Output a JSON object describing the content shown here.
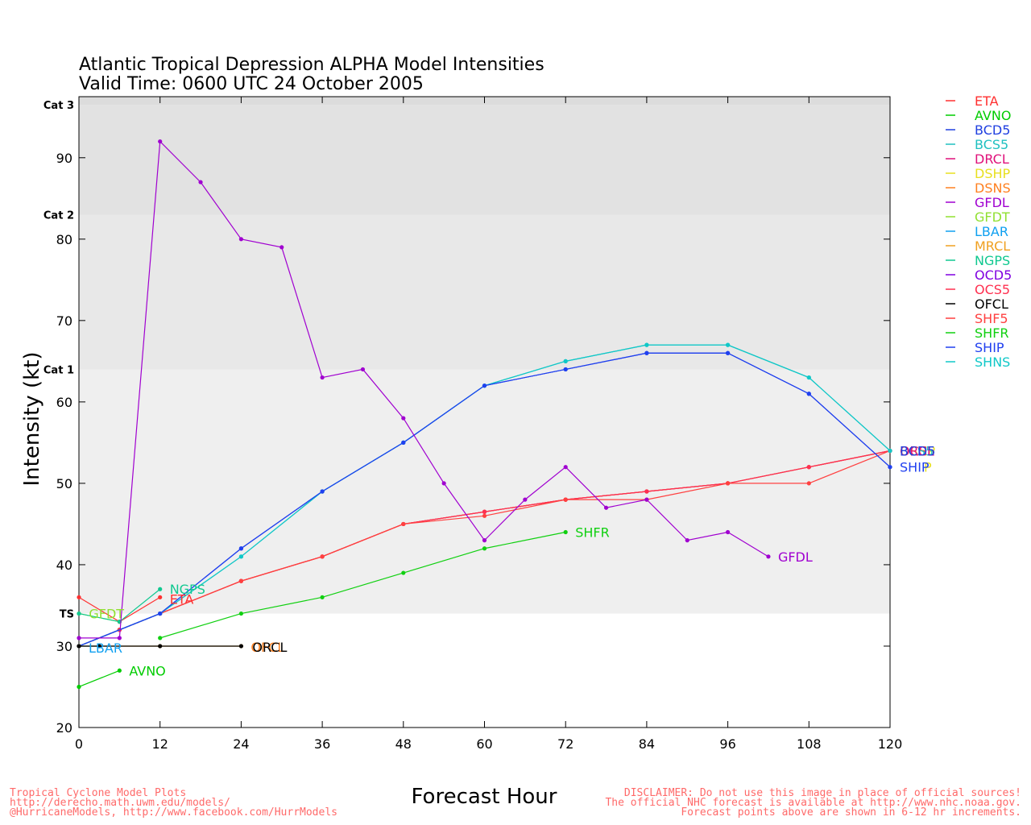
{
  "chart_data": {
    "type": "line",
    "title": "Atlantic Tropical Depression ALPHA Model Intensities",
    "subtitle": "Valid Time: 0600 UTC 24 October 2005",
    "xlabel": "Forecast Hour",
    "ylabel": "Intensity (kt)",
    "xlim": [
      0,
      120
    ],
    "ylim": [
      20,
      97.5
    ],
    "xticks": [
      "0",
      "12",
      "24",
      "36",
      "48",
      "60",
      "72",
      "84",
      "96",
      "108",
      "120"
    ],
    "yticks": [
      "20",
      "30",
      "40",
      "50",
      "60",
      "70",
      "80",
      "90"
    ],
    "xtick_values": [
      0,
      12,
      24,
      36,
      48,
      60,
      72,
      84,
      96,
      108,
      120
    ],
    "ytick_values": [
      20,
      30,
      40,
      50,
      60,
      70,
      80,
      90
    ],
    "intensity_bands": [
      {
        "label": "TS",
        "from": 34,
        "to": 64,
        "color": "#efefef"
      },
      {
        "label": "Cat 1",
        "from": 64,
        "to": 83,
        "color": "#e8e8e8"
      },
      {
        "label": "Cat 2",
        "from": 83,
        "to": 96.5,
        "color": "#e2e2e2"
      },
      {
        "label": "Cat 3",
        "from": 96.5,
        "to": 97.5,
        "color": "#dcdcdc"
      }
    ],
    "legend_position": "right",
    "legend": [
      {
        "name": "ETA",
        "color": "#ff3030"
      },
      {
        "name": "AVNO",
        "color": "#00cc00"
      },
      {
        "name": "BCD5",
        "color": "#2040e0"
      },
      {
        "name": "BCS5",
        "color": "#20c0c0"
      },
      {
        "name": "DRCL",
        "color": "#e0107a"
      },
      {
        "name": "DSHP",
        "color": "#e8e020"
      },
      {
        "name": "DSNS",
        "color": "#ff8020"
      },
      {
        "name": "GFDL",
        "color": "#a000d0"
      },
      {
        "name": "GFDT",
        "color": "#90e030"
      },
      {
        "name": "LBAR",
        "color": "#10a0f0"
      },
      {
        "name": "MRCL",
        "color": "#f0a020"
      },
      {
        "name": "NGPS",
        "color": "#10c890"
      },
      {
        "name": "OCD5",
        "color": "#8000e0"
      },
      {
        "name": "OCS5",
        "color": "#ff3050"
      },
      {
        "name": "OFCL",
        "color": "#000000"
      },
      {
        "name": "SHF5",
        "color": "#ff4040"
      },
      {
        "name": "SHFR",
        "color": "#10d010"
      },
      {
        "name": "SHIP",
        "color": "#2040f0"
      },
      {
        "name": "SHNS",
        "color": "#10c8c8"
      }
    ],
    "series": [
      {
        "name": "DSHP",
        "color": "#e8e020",
        "x": [
          0,
          6,
          12,
          24,
          36,
          48,
          60,
          72,
          84,
          96,
          108,
          120
        ],
        "y": [
          30,
          32,
          34,
          38,
          41,
          45,
          46.5,
          48,
          49,
          50,
          52,
          54
        ]
      },
      {
        "name": "DSNS",
        "color": "#ff8020",
        "x": [
          0,
          6,
          12,
          24,
          36,
          48,
          60,
          72,
          84,
          96,
          108,
          120
        ],
        "y": [
          30,
          32,
          34,
          38,
          41,
          45,
          46.5,
          48,
          49,
          50,
          52,
          54
        ]
      },
      {
        "name": "DRCL",
        "color": "#e0107a",
        "x": [
          0,
          6,
          12,
          24,
          36,
          48,
          60,
          72,
          84,
          96,
          108,
          120
        ],
        "y": [
          30,
          32,
          34,
          38,
          41,
          45,
          46.5,
          48,
          49,
          50,
          52,
          54
        ]
      },
      {
        "name": "OCS5",
        "color": "#ff3050",
        "x": [
          0,
          6,
          12,
          24,
          36,
          48,
          60,
          72,
          84,
          96,
          108,
          120
        ],
        "y": [
          30,
          32,
          34,
          38,
          41,
          45,
          46.5,
          48,
          49,
          50,
          52,
          54
        ]
      },
      {
        "name": "SHF5",
        "color": "#ff4040",
        "x": [
          0,
          6,
          12,
          24,
          36,
          48,
          60,
          72,
          84,
          96,
          108,
          120
        ],
        "y": [
          30,
          32,
          34,
          38,
          41,
          45,
          46,
          48,
          48,
          50,
          50,
          54
        ]
      },
      {
        "name": "BCS5",
        "color": "#20c0c0",
        "x": [
          0,
          12,
          24,
          36,
          48,
          60,
          72,
          84,
          96,
          108,
          120
        ],
        "y": [
          30,
          34,
          41,
          49,
          55,
          62,
          65,
          67,
          67,
          63,
          54
        ]
      },
      {
        "name": "BCD5",
        "color": "#2040e0",
        "x": [
          0,
          12,
          24,
          36,
          48,
          60,
          72,
          84,
          96,
          108,
          120
        ],
        "y": [
          30,
          34,
          42,
          49,
          55,
          62,
          64,
          66,
          66,
          61,
          52
        ]
      },
      {
        "name": "SHNS",
        "color": "#10c8c8",
        "x": [
          0,
          12,
          24,
          36,
          48,
          60,
          72,
          84,
          96,
          108,
          120
        ],
        "y": [
          30,
          34,
          41,
          49,
          55,
          62,
          65,
          67,
          67,
          63,
          54
        ]
      },
      {
        "name": "SHIP",
        "color": "#2040f0",
        "x": [
          0,
          12,
          24,
          36,
          48,
          60,
          72,
          84,
          96,
          108,
          120
        ],
        "y": [
          30,
          34,
          42,
          49,
          55,
          62,
          64,
          66,
          66,
          61,
          52
        ]
      },
      {
        "name": "ETA",
        "color": "#ff3030",
        "x": [
          0,
          6,
          12
        ],
        "y": [
          36,
          33,
          36
        ]
      },
      {
        "name": "AVNO",
        "color": "#00cc00",
        "x": [
          0,
          6
        ],
        "y": [
          25,
          27
        ]
      },
      {
        "name": "GFDT",
        "color": "#90e030",
        "x": [
          0,
          6
        ],
        "y": [
          34,
          33
        ]
      },
      {
        "name": "NGPS",
        "color": "#10c890",
        "x": [
          0,
          6,
          12
        ],
        "y": [
          34,
          33,
          37
        ]
      },
      {
        "name": "LBAR",
        "color": "#10a0f0",
        "x": [
          0,
          3
        ],
        "y": [
          30,
          30
        ]
      },
      {
        "name": "GFDL",
        "color": "#a000d0",
        "x": [
          0,
          6,
          12,
          18,
          24,
          30,
          36,
          42,
          48,
          54,
          60,
          66,
          72,
          78,
          84,
          90,
          96,
          102
        ],
        "y": [
          31,
          31,
          92,
          87,
          80,
          79,
          63,
          64,
          58,
          50,
          43,
          48,
          52,
          47,
          48,
          43,
          44,
          41
        ]
      },
      {
        "name": "SHFR",
        "color": "#10d010",
        "x": [
          12,
          24,
          36,
          48,
          60,
          72
        ],
        "y": [
          31,
          34,
          36,
          39,
          42,
          44
        ]
      },
      {
        "name": "MRCL",
        "color": "#f0a020",
        "x": [
          0,
          3,
          12,
          24
        ],
        "y": [
          30,
          30,
          30,
          30
        ]
      },
      {
        "name": "OFCL",
        "color": "#000000",
        "x": [
          0,
          3,
          12,
          24
        ],
        "y": [
          30,
          30,
          30,
          30
        ]
      }
    ],
    "annotations": [
      {
        "text": "GFDT",
        "color": "#90e030",
        "x": 6,
        "y": 34,
        "dx": -38,
        "dy": 6
      },
      {
        "text": "NGPS",
        "color": "#10c890",
        "x": 12,
        "y": 37,
        "dx": 12,
        "dy": 6
      },
      {
        "text": "ETA",
        "color": "#ff3030",
        "x": 12,
        "y": 36,
        "dx": 12,
        "dy": 8
      },
      {
        "text": "LBAR",
        "color": "#10a0f0",
        "x": 0,
        "y": 30,
        "dx": 12,
        "dy": 8
      },
      {
        "text": "AVNO",
        "color": "#00cc00",
        "x": 6,
        "y": 27,
        "dx": 12,
        "dy": 6
      },
      {
        "text": "OFCL",
        "color": "#ff8020",
        "x": 24,
        "y": 30,
        "dx": 12,
        "dy": 7
      },
      {
        "text": "ORCL",
        "color": "#000000",
        "x": 24,
        "y": 30,
        "dx": 14,
        "dy": 7
      },
      {
        "text": "SHFR",
        "color": "#10d010",
        "x": 72,
        "y": 44,
        "dx": 12,
        "dy": 6
      },
      {
        "text": "GFDL",
        "color": "#a000d0",
        "x": 102,
        "y": 41,
        "dx": 12,
        "dy": 6
      },
      {
        "text": "DSHP",
        "color": "#e8e020",
        "x": 120,
        "y": 54,
        "dx": 12,
        "dy": 6
      },
      {
        "text": "OCS5",
        "color": "#ff3050",
        "x": 120,
        "y": 54,
        "dx": 12,
        "dy": 6
      },
      {
        "text": "BCS5",
        "color": "#20c0c0",
        "x": 120,
        "y": 54,
        "dx": 12,
        "dy": 6
      },
      {
        "text": "DRCL",
        "color": "#e0107a",
        "x": 120,
        "y": 54,
        "dx": 12,
        "dy": 6
      },
      {
        "text": "BCD5",
        "color": "#2040e0",
        "x": 120,
        "y": 54,
        "dx": 12,
        "dy": 6
      },
      {
        "text": "P",
        "color": "#e8e020",
        "x": 120,
        "y": 52,
        "dx": 42,
        "dy": 6
      },
      {
        "text": "SHIP",
        "color": "#2040f0",
        "x": 120,
        "y": 52,
        "dx": 12,
        "dy": 6
      }
    ]
  },
  "footer": {
    "left_line1": "Tropical Cyclone Model Plots",
    "left_line2": "http://derecho.math.uwm.edu/models/",
    "left_line3": "@HurricaneModels, http://www.facebook.com/HurrModels",
    "right_line1": "DISCLAIMER: Do not use this image in place of official sources!",
    "right_line2": "The official NHC forecast is available at http://www.nhc.noaa.gov.",
    "right_line3": "Forecast points above are shown in 6-12 hr increments."
  }
}
